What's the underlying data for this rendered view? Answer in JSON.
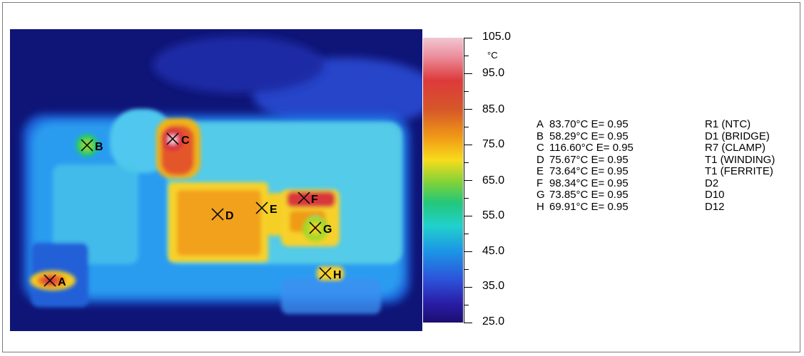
{
  "scale": {
    "unit": "°C",
    "labels": [
      "105.0",
      "95.0",
      "85.0",
      "75.0",
      "65.0",
      "55.0",
      "45.0",
      "35.0",
      "25.0"
    ]
  },
  "markers": [
    "A",
    "B",
    "C",
    "D",
    "E",
    "F",
    "G",
    "H"
  ],
  "readings": [
    {
      "marker": "A",
      "text": "83.70°C E= 0.95",
      "component": "R1 (NTC)"
    },
    {
      "marker": "B",
      "text": "58.29°C E= 0.95",
      "component": "D1 (BRIDGE)"
    },
    {
      "marker": "C",
      "text": "116.60°C E= 0.95",
      "component": "R7 (CLAMP)"
    },
    {
      "marker": "D",
      "text": "75.67°C E= 0.95",
      "component": "T1 (WINDING)"
    },
    {
      "marker": "E",
      "text": "73.64°C E= 0.95",
      "component": "T1 (FERRITE)"
    },
    {
      "marker": "F",
      "text": "98.34°C E= 0.95",
      "component": "D2"
    },
    {
      "marker": "G",
      "text": "73.85°C E= 0.95",
      "component": "D10"
    },
    {
      "marker": "H",
      "text": "69.91°C E= 0.95",
      "component": "D12"
    }
  ]
}
